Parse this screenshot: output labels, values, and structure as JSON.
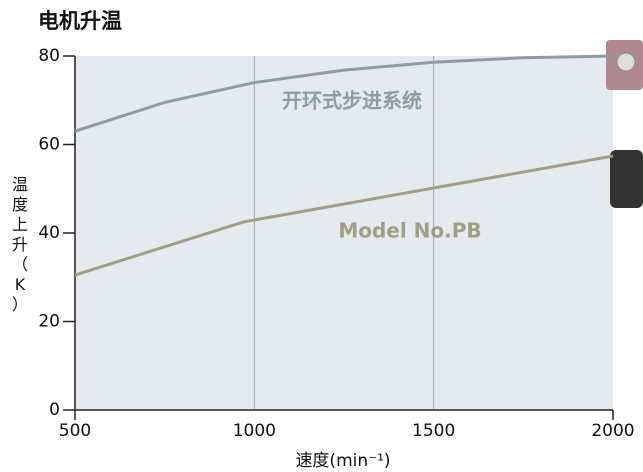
{
  "chart_data": {
    "type": "line",
    "title": "电机升温",
    "x_label": "速度(min⁻¹)",
    "y_label": "温度上升（K）",
    "xlim": [
      500,
      2000
    ],
    "xticks": [
      500,
      1000,
      1500,
      2000
    ],
    "ylim": [
      0,
      80
    ],
    "yticks": [
      0,
      20,
      40,
      60,
      80
    ],
    "series": [
      {
        "name": "开环式步进系统",
        "color": "#8c9ca4",
        "x": [
          500,
          750,
          1000,
          1250,
          1500,
          1750,
          2000
        ],
        "values": [
          63,
          69.5,
          74,
          76.8,
          78.6,
          79.6,
          80
        ]
      },
      {
        "name": "Model No.PB",
        "color": "#a29e86",
        "x": [
          500,
          970,
          2000
        ],
        "values": [
          30.5,
          42.5,
          57.4
        ]
      }
    ]
  }
}
